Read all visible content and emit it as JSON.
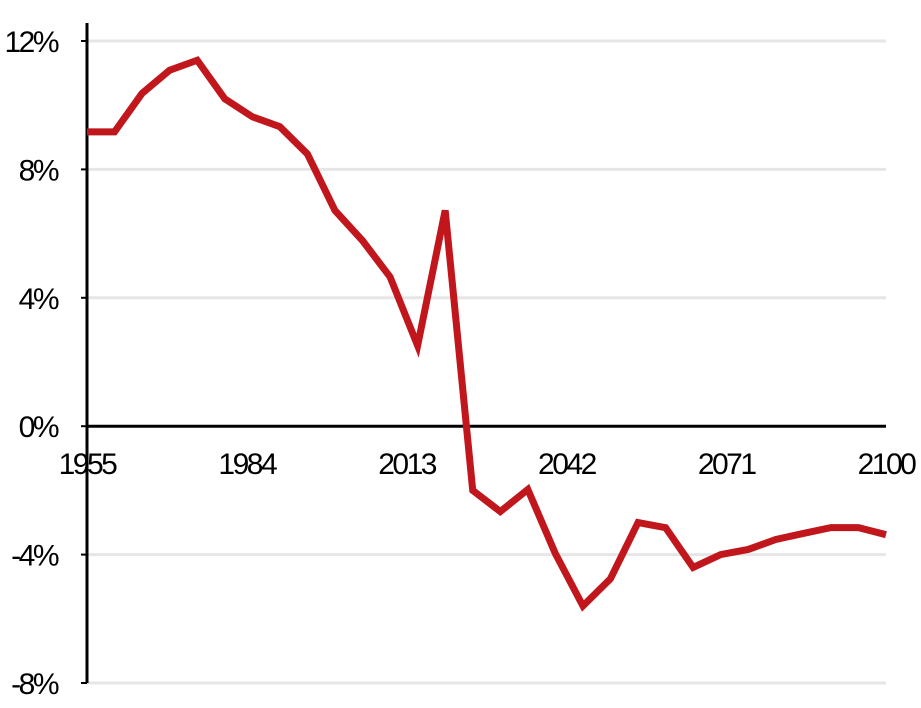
{
  "chart_data": {
    "type": "line",
    "x": [
      1955,
      1960,
      1965,
      1970,
      1975,
      1980,
      1985,
      1990,
      1995,
      2000,
      2005,
      2010,
      2015,
      2020,
      2025,
      2030,
      2035,
      2040,
      2045,
      2050,
      2055,
      2060,
      2065,
      2070,
      2075,
      2080,
      2085,
      2090,
      2095,
      2100
    ],
    "series": [
      {
        "color": "#c0161c",
        "values": [
          9.17,
          9.17,
          10.37,
          11.09,
          11.4,
          10.2,
          9.64,
          9.33,
          8.48,
          6.72,
          5.78,
          4.65,
          2.51,
          6.72,
          -2.0,
          -2.66,
          -1.97,
          -3.97,
          -5.6,
          -4.75,
          -3.0,
          -3.16,
          -4.4,
          -4.0,
          -3.84,
          -3.53,
          -3.34,
          -3.16,
          -3.16,
          -3.38
        ]
      }
    ],
    "xlim": [
      1955,
      2100
    ],
    "xticks": [
      1955,
      1984,
      2013,
      2042,
      2071,
      2100
    ],
    "ylim": [
      -8,
      12
    ],
    "yticks": [
      {
        "value": -8,
        "label": "-8%"
      },
      {
        "value": -4,
        "label": "-4%"
      },
      {
        "value": 0,
        "label": "0%"
      },
      {
        "value": 4,
        "label": "4%"
      },
      {
        "value": 8,
        "label": "8%"
      },
      {
        "value": 12,
        "label": "12%"
      }
    ],
    "grid": true
  }
}
